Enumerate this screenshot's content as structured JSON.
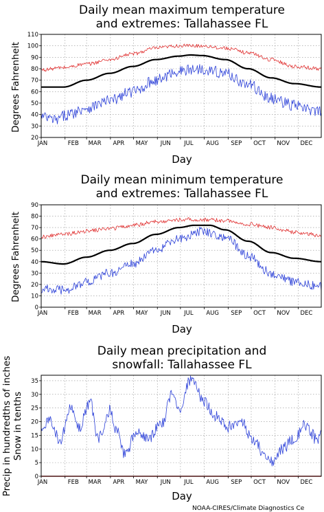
{
  "credit": "NOAA-CIRES/Climate Diagnostics Ce",
  "months": [
    "JAN",
    "FEB",
    "MAR",
    "APR",
    "MAY",
    "JUN",
    "JUL",
    "AUG",
    "SEP",
    "OCT",
    "NOV",
    "DEC"
  ],
  "colors": {
    "mean": "#000000",
    "record_high": "#e03030",
    "record_low": "#2a3fd8",
    "grid": "#909090",
    "zero_line": "#e03030"
  },
  "chart_data": [
    {
      "type": "line",
      "title_line1": "Daily mean maximum temperature",
      "title_line2": "and extremes: Tallahassee FL",
      "xlabel": "Day",
      "ylabel": "Degrees Fahrenheit",
      "ylim": [
        20,
        110
      ],
      "yticks": [
        20,
        30,
        40,
        50,
        60,
        70,
        80,
        90,
        100,
        110
      ],
      "grid": true,
      "series": [
        {
          "role": "mean",
          "color": "#000000",
          "anchors_day": [
            1,
            30,
            60,
            90,
            120,
            150,
            180,
            195,
            210,
            240,
            270,
            300,
            330,
            365
          ],
          "anchors_val": [
            64,
            64,
            70,
            76,
            82,
            88,
            91,
            92,
            91.5,
            88,
            80,
            72,
            67,
            64
          ]
        },
        {
          "role": "record_high",
          "color": "#e03030",
          "anchors_day": [
            1,
            30,
            60,
            90,
            120,
            150,
            180,
            210,
            240,
            270,
            300,
            330,
            365
          ],
          "anchors_val": [
            79,
            81,
            84,
            88,
            93,
            98,
            100,
            100,
            98,
            94,
            88,
            82,
            80
          ],
          "noise": 1.6
        },
        {
          "role": "record_low",
          "color": "#2a3fd8",
          "anchors_day": [
            1,
            20,
            35,
            60,
            90,
            120,
            150,
            180,
            210,
            240,
            270,
            300,
            330,
            350,
            365
          ],
          "anchors_val": [
            38,
            35,
            40,
            46,
            52,
            60,
            70,
            78,
            80,
            76,
            66,
            54,
            48,
            44,
            42
          ],
          "noise": 5
        }
      ]
    },
    {
      "type": "line",
      "title_line1": "Daily mean minimum temperature",
      "title_line2": "and extremes: Tallahassee FL",
      "xlabel": "Day",
      "ylabel": "Degrees Fahrenheit",
      "ylim": [
        0,
        90
      ],
      "yticks": [
        0,
        10,
        20,
        30,
        40,
        50,
        60,
        70,
        80,
        90
      ],
      "grid": true,
      "series": [
        {
          "role": "mean",
          "color": "#000000",
          "anchors_day": [
            1,
            30,
            60,
            90,
            120,
            150,
            180,
            200,
            220,
            240,
            270,
            300,
            330,
            365
          ],
          "anchors_val": [
            40,
            38,
            44,
            50,
            56,
            64,
            70,
            72,
            72,
            68,
            58,
            48,
            43,
            40
          ]
        },
        {
          "role": "record_high",
          "color": "#e03030",
          "anchors_day": [
            1,
            30,
            60,
            90,
            120,
            150,
            180,
            210,
            240,
            270,
            300,
            330,
            365
          ],
          "anchors_val": [
            62,
            64,
            67,
            69,
            72,
            75,
            77,
            77,
            76,
            73,
            70,
            66,
            63
          ],
          "noise": 1.8
        },
        {
          "role": "record_low",
          "color": "#2a3fd8",
          "anchors_day": [
            1,
            30,
            60,
            90,
            120,
            150,
            180,
            210,
            240,
            270,
            300,
            330,
            365
          ],
          "anchors_val": [
            16,
            15,
            22,
            30,
            38,
            50,
            60,
            67,
            62,
            45,
            30,
            22,
            18
          ],
          "noise": 4
        }
      ]
    },
    {
      "type": "line",
      "title_line1": "Daily mean precipitation and",
      "title_line2": "snowfall: Tallahassee FL",
      "xlabel": "Day",
      "ylabel_line1": "Precip in hundredths of inches",
      "ylabel_line2": "Snow in tenths",
      "ylim": [
        0,
        37
      ],
      "yticks": [
        0,
        5,
        10,
        15,
        20,
        25,
        30,
        35
      ],
      "grid": true,
      "series": [
        {
          "role": "precip",
          "color": "#2a3fd8",
          "anchors_day": [
            1,
            15,
            25,
            40,
            50,
            65,
            75,
            90,
            100,
            110,
            125,
            140,
            160,
            170,
            180,
            195,
            200,
            210,
            230,
            245,
            260,
            280,
            290,
            300,
            315,
            330,
            345,
            360,
            365
          ],
          "anchors_val": [
            18,
            20,
            13,
            25,
            18,
            27,
            14,
            24,
            16,
            8,
            16,
            14,
            20,
            30,
            24,
            35,
            34,
            28,
            22,
            18,
            20,
            12,
            8,
            5,
            10,
            14,
            19,
            13,
            17
          ],
          "noise": 2.2
        },
        {
          "role": "snow",
          "color": "#e03030",
          "anchors_day": [
            1,
            365
          ],
          "anchors_val": [
            0,
            0
          ]
        }
      ]
    }
  ]
}
